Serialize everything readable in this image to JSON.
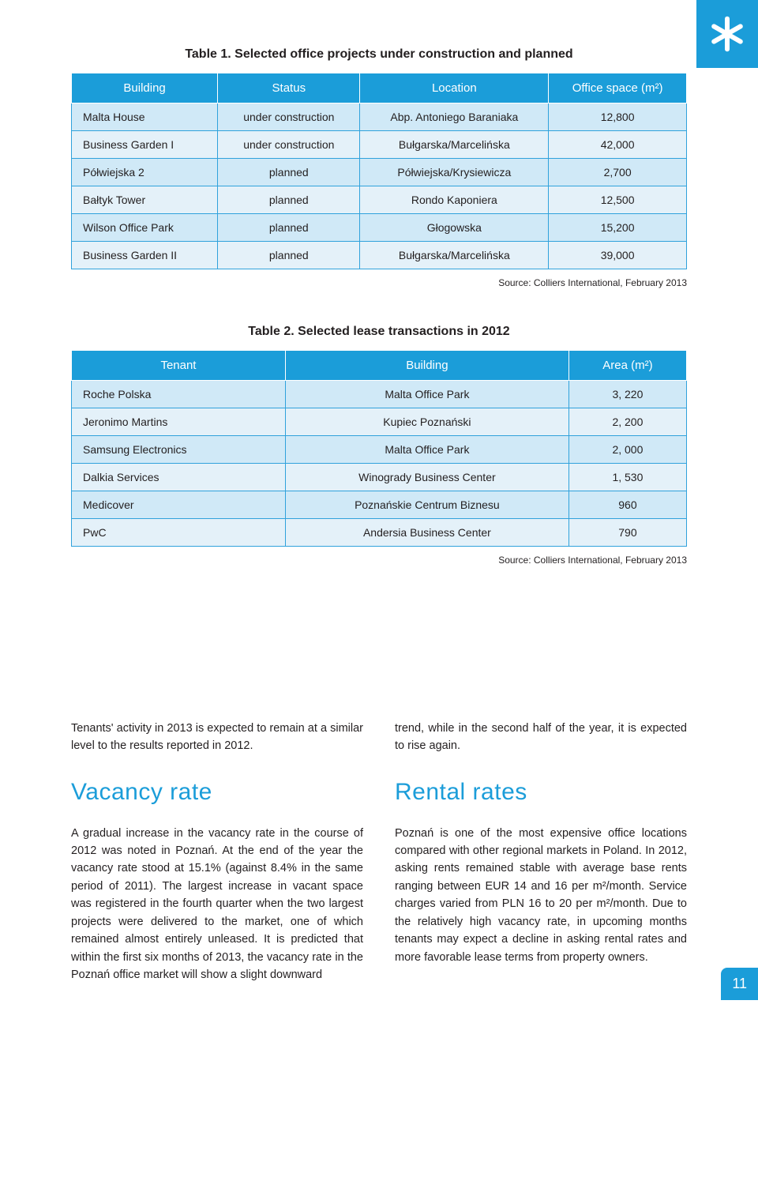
{
  "page_number": "11",
  "table1": {
    "caption": "Table 1. Selected office projects under construction and planned",
    "cols": [
      "Building",
      "Status",
      "Location",
      "Office space (m²)"
    ],
    "rows": [
      [
        "Malta House",
        "under construction",
        "Abp. Antoniego Baraniaka",
        "12,800"
      ],
      [
        "Business Garden I",
        "under construction",
        "Bułgarska/Marcelińska",
        "42,000"
      ],
      [
        "Półwiejska 2",
        "planned",
        "Półwiejska/Krysiewicza",
        "2,700"
      ],
      [
        "Bałtyk Tower",
        "planned",
        "Rondo Kaponiera",
        "12,500"
      ],
      [
        "Wilson Office Park",
        "planned",
        "Głogowska",
        "15,200"
      ],
      [
        "Business Garden II",
        "planned",
        "Bułgarska/Marcelińska",
        "39,000"
      ]
    ],
    "source": "Source: Colliers International, February 2013"
  },
  "table2": {
    "caption": "Table 2. Selected lease transactions in 2012",
    "cols": [
      "Tenant",
      "Building",
      "Area (m²)"
    ],
    "rows": [
      [
        "Roche Polska",
        "Malta Office Park",
        "3, 220"
      ],
      [
        "Jeronimo Martins",
        "Kupiec Poznański",
        "2, 200"
      ],
      [
        "Samsung Electronics",
        "Malta Office Park",
        "2, 000"
      ],
      [
        "Dalkia Services",
        "Winogrady Business Center",
        "1, 530"
      ],
      [
        "Medicover",
        "Poznańskie Centrum Biznesu",
        "960"
      ],
      [
        "PwC",
        "Andersia Business Center",
        "790"
      ]
    ],
    "source": "Source: Colliers International, February 2013"
  },
  "intro_left": "Tenants' activity in 2013 is expected to remain at a similar level to the results reported in 2012.",
  "intro_right": "trend, while in the second half of the year, it is expected to rise again.",
  "vacancy": {
    "heading": "Vacancy rate",
    "text": "A gradual increase in the vacancy rate in the course of 2012 was noted in Poznań. At the end of the year the vacancy rate stood at 15.1% (against 8.4% in the same period of 2011). The largest increase in vacant space was registered in the fourth quarter when the two largest projects were delivered to the market, one of which remained almost entirely unleased. It is predicted that within the first six months of 2013, the vacancy rate in the Poznań office market will show a slight downward"
  },
  "rental": {
    "heading": "Rental rates",
    "text": "Poznań is one of the most expensive office locations compared with other regional markets in Poland. In 2012, asking rents remained stable with average base rents ranging between EUR 14 and 16 per m²/month. Service charges varied from PLN 16 to 20 per m²/month. Due to the relatively high vacancy rate, in upcoming months tenants may expect a decline in asking rental rates and more favorable lease terms from property owners."
  },
  "colors": {
    "brand_blue": "#1b9dd9",
    "border_blue": "#30a2dc",
    "row_light": "#d0e9f7",
    "row_alt": "#e4f1f9",
    "text": "#231f20"
  }
}
